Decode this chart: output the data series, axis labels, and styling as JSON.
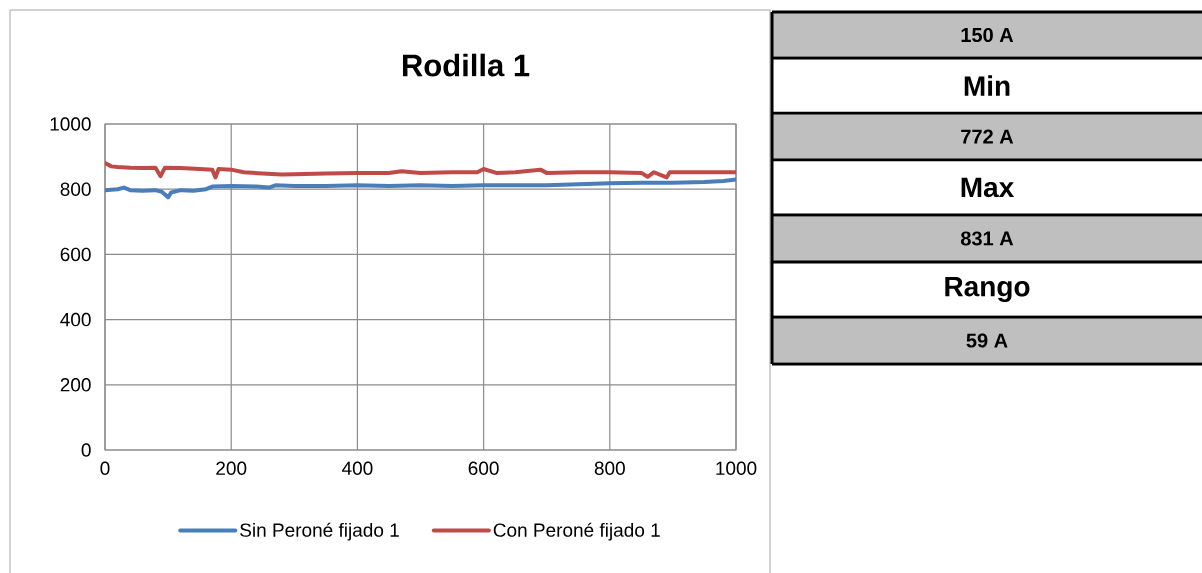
{
  "chart_data": [
    {
      "type": "line",
      "title": "Rodilla 1",
      "series": [
        {
          "name": "Sin Peroné fijado 1",
          "color": "#4a7ebb",
          "x": [
            0,
            20,
            30,
            40,
            60,
            80,
            90,
            100,
            105,
            120,
            140,
            160,
            170,
            200,
            240,
            260,
            270,
            300,
            350,
            400,
            450,
            500,
            550,
            600,
            650,
            700,
            750,
            800,
            850,
            900,
            950,
            980,
            1000
          ],
          "values": [
            797,
            800,
            805,
            797,
            795,
            797,
            792,
            775,
            790,
            797,
            795,
            800,
            808,
            810,
            808,
            805,
            812,
            810,
            810,
            812,
            810,
            812,
            810,
            812,
            812,
            812,
            815,
            818,
            820,
            820,
            822,
            825,
            830
          ]
        },
        {
          "name": "Con Peroné fijado 1",
          "color": "#be4b48",
          "x": [
            0,
            10,
            20,
            40,
            60,
            80,
            88,
            95,
            120,
            150,
            170,
            175,
            180,
            200,
            220,
            250,
            280,
            300,
            350,
            400,
            450,
            470,
            500,
            550,
            590,
            600,
            620,
            650,
            690,
            700,
            750,
            800,
            850,
            860,
            870,
            890,
            895,
            950,
            1000
          ],
          "values": [
            880,
            870,
            868,
            866,
            865,
            866,
            840,
            866,
            865,
            862,
            860,
            836,
            862,
            860,
            852,
            848,
            845,
            846,
            848,
            850,
            850,
            855,
            850,
            852,
            852,
            862,
            850,
            852,
            860,
            850,
            852,
            852,
            850,
            838,
            852,
            836,
            852,
            852,
            852
          ]
        }
      ],
      "xlim": [
        0,
        1000
      ],
      "xticks": [
        0,
        200,
        400,
        600,
        800,
        1000
      ],
      "ylim": [
        0,
        1000
      ],
      "yticks": [
        0,
        200,
        400,
        600,
        800,
        1000
      ],
      "grid": true,
      "legend": "bottom",
      "line_style": "solid",
      "marker": "none"
    },
    {
      "type": "other",
      "categories": [
        "150 A",
        "Min",
        "772 A",
        "Max",
        "831 A",
        "Rango",
        "59 A"
      ],
      "colors": [
        "#bfbfbf",
        "#ffffff",
        "#bfbfbf",
        "#ffffff",
        "#bfbfbf",
        "#ffffff",
        "#bfbfbf"
      ]
    }
  ]
}
